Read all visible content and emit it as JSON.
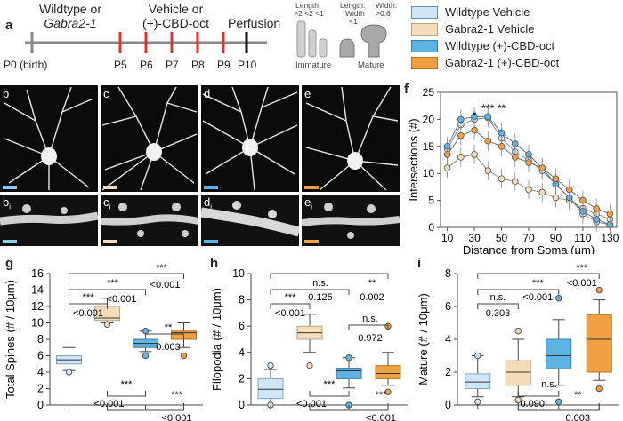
{
  "panels": {
    "a": {
      "label": "a",
      "group_left": [
        "Wildtype or",
        "Gabra2-1"
      ],
      "group_mid": [
        "Vehicle or",
        "(+)-CBD-oct"
      ],
      "perfusion": "Perfusion",
      "ticks": [
        "P0 (birth)",
        "P5",
        "P6",
        "P7",
        "P8",
        "P9",
        "P10"
      ],
      "spine_criteria": {
        "length1": "Length:",
        "l_vals": [
          ">2",
          "<2",
          "<1"
        ],
        "length2": "Length:",
        "width1": "Width:",
        "width_lt": "Width",
        "lt1": "<1",
        "gt06": ">0.6",
        "immature": "Immature",
        "mature": "Mature"
      }
    },
    "legend": [
      {
        "label": "Wildtype Vehicle",
        "color": "#cfe6f7"
      },
      {
        "label": "Gabra2-1 Vehicle",
        "color": "#f5dcb8"
      },
      {
        "label": "Wildtype (+)-CBD-oct",
        "color": "#5db3e4"
      },
      {
        "label": "Gabra2-1 (+)-CBD-oct",
        "color": "#f0a040"
      }
    ],
    "micro_labels": [
      "b",
      "c",
      "d",
      "e"
    ],
    "micro_sub_labels": [
      "b",
      "c",
      "d",
      "e"
    ],
    "micro_sub_index": "i",
    "f": {
      "label": "f",
      "stars": [
        "*",
        "***",
        "**"
      ]
    },
    "g": {
      "label": "g",
      "sig_top": [
        "***",
        "***",
        "***"
      ],
      "p_vals": [
        "<0.001",
        "<0.001",
        "<0.001",
        "0.003",
        "<0.001",
        "<0.001"
      ],
      "sig_stars": [
        "**",
        "***",
        "***"
      ]
    },
    "h": {
      "label": "h",
      "sig_top": [
        "***",
        "n.s.",
        "**"
      ],
      "p_vals": [
        "<0.001",
        "0.125",
        "0.002",
        "0.972",
        "<0.001",
        "<0.001"
      ],
      "sig_extra": [
        "n.s.",
        "***",
        "***"
      ]
    },
    "i": {
      "label": "i",
      "sig_top": [
        "n.s.",
        "***",
        "***"
      ],
      "p_vals": [
        "0.303",
        "<0.001",
        "<0.001",
        "0.090",
        "0.003"
      ],
      "sig_extra": [
        "n.s.",
        "**"
      ]
    }
  },
  "chart_data": [
    {
      "type": "line",
      "xlabel": "Distance from Soma (μm)",
      "ylabel": "Intersections (#)",
      "xlim": [
        5,
        135
      ],
      "ylim": [
        0,
        25
      ],
      "xticks": [
        10,
        30,
        50,
        70,
        90,
        110,
        130
      ],
      "yticks": [
        0,
        5,
        10,
        15,
        20,
        25
      ],
      "x": [
        10,
        20,
        30,
        40,
        50,
        60,
        70,
        80,
        90,
        100,
        110,
        120,
        130
      ],
      "series": [
        {
          "name": "Wildtype Vehicle",
          "color": "#cfe6f7",
          "stroke": "#6f8fa8",
          "values": [
            14.5,
            19.0,
            20.0,
            20.3,
            16.5,
            14.0,
            12.5,
            10.5,
            8.0,
            5.5,
            2.5,
            1.0,
            0.5
          ]
        },
        {
          "name": "Gabra2-1 Vehicle",
          "color": "#f5dcb8",
          "stroke": "#8a8a7a",
          "values": [
            11.0,
            13.0,
            13.5,
            10.5,
            9.0,
            8.5,
            7.0,
            6.5,
            5.5,
            5.0,
            3.5,
            2.5,
            1.5
          ]
        },
        {
          "name": "Wildtype (+)-CBD-oct",
          "color": "#5db3e4",
          "stroke": "#5a6f80",
          "values": [
            15.0,
            20.0,
            20.5,
            20.5,
            17.5,
            15.5,
            13.5,
            11.0,
            8.0,
            5.5,
            3.0,
            1.5,
            0.5
          ]
        },
        {
          "name": "Gabra2-1 (+)-CBD-oct",
          "color": "#f0a040",
          "stroke": "#6f6f6f",
          "values": [
            13.5,
            17.0,
            18.0,
            16.0,
            15.0,
            13.0,
            12.0,
            11.0,
            9.0,
            7.0,
            5.0,
            3.5,
            2.5
          ]
        }
      ]
    },
    {
      "type": "box",
      "ylabel": "Total Spines (# / 10μm)",
      "ylim": [
        0,
        16
      ],
      "yticks": [
        0,
        2,
        4,
        6,
        8,
        10,
        12,
        14,
        16
      ],
      "boxes": [
        {
          "min": 4.2,
          "q1": 5.0,
          "median": 5.5,
          "q3": 6.0,
          "max": 7.0,
          "outliers": [
            4.0
          ]
        },
        {
          "min": 10.0,
          "q1": 10.3,
          "median": 10.6,
          "q3": 12.0,
          "max": 13.0,
          "outliers": [
            9.8
          ]
        },
        {
          "min": 6.5,
          "q1": 7.0,
          "median": 7.5,
          "q3": 8.0,
          "max": 9.0,
          "outliers": [
            6.0,
            9.0
          ]
        },
        {
          "min": 7.0,
          "q1": 8.0,
          "median": 8.8,
          "q3": 9.0,
          "max": 10.0,
          "outliers": [
            6.0
          ]
        }
      ]
    },
    {
      "type": "box",
      "ylabel": "Filopodia (# / 10μm)",
      "ylim": [
        0,
        10
      ],
      "yticks": [
        0,
        2,
        4,
        6,
        8,
        10
      ],
      "boxes": [
        {
          "min": 0,
          "q1": 0.5,
          "median": 1.2,
          "q3": 2.0,
          "max": 2.7,
          "outliers": [
            3.0,
            0
          ]
        },
        {
          "min": 4.0,
          "q1": 5.0,
          "median": 5.5,
          "q3": 6.0,
          "max": 6.9,
          "outliers": [
            3.0
          ]
        },
        {
          "min": 1.3,
          "q1": 2.0,
          "median": 2.6,
          "q3": 2.8,
          "max": 3.6,
          "outliers": [
            3.6,
            0
          ]
        },
        {
          "min": 1.5,
          "q1": 2.0,
          "median": 2.4,
          "q3": 3.0,
          "max": 4.0,
          "outliers": [
            6.0,
            1.0
          ]
        }
      ]
    },
    {
      "type": "box",
      "ylabel": "Mature (# / 10μm)",
      "ylim": [
        0,
        8
      ],
      "yticks": [
        0,
        2,
        4,
        6,
        8
      ],
      "boxes": [
        {
          "min": 0.5,
          "q1": 1.0,
          "median": 1.4,
          "q3": 1.9,
          "max": 3.0,
          "outliers": [
            3.0,
            0.2
          ]
        },
        {
          "min": 0.5,
          "q1": 1.2,
          "median": 2.0,
          "q3": 2.7,
          "max": 4.0,
          "outliers": [
            4.5,
            0.3
          ]
        },
        {
          "min": 1.2,
          "q1": 2.2,
          "median": 3.0,
          "q3": 4.0,
          "max": 5.2,
          "outliers": [
            6.5,
            0.2
          ]
        },
        {
          "min": 1.5,
          "q1": 2.0,
          "median": 4.0,
          "q3": 5.5,
          "max": 6.4,
          "outliers": [
            7.0,
            1.0
          ]
        }
      ]
    }
  ]
}
